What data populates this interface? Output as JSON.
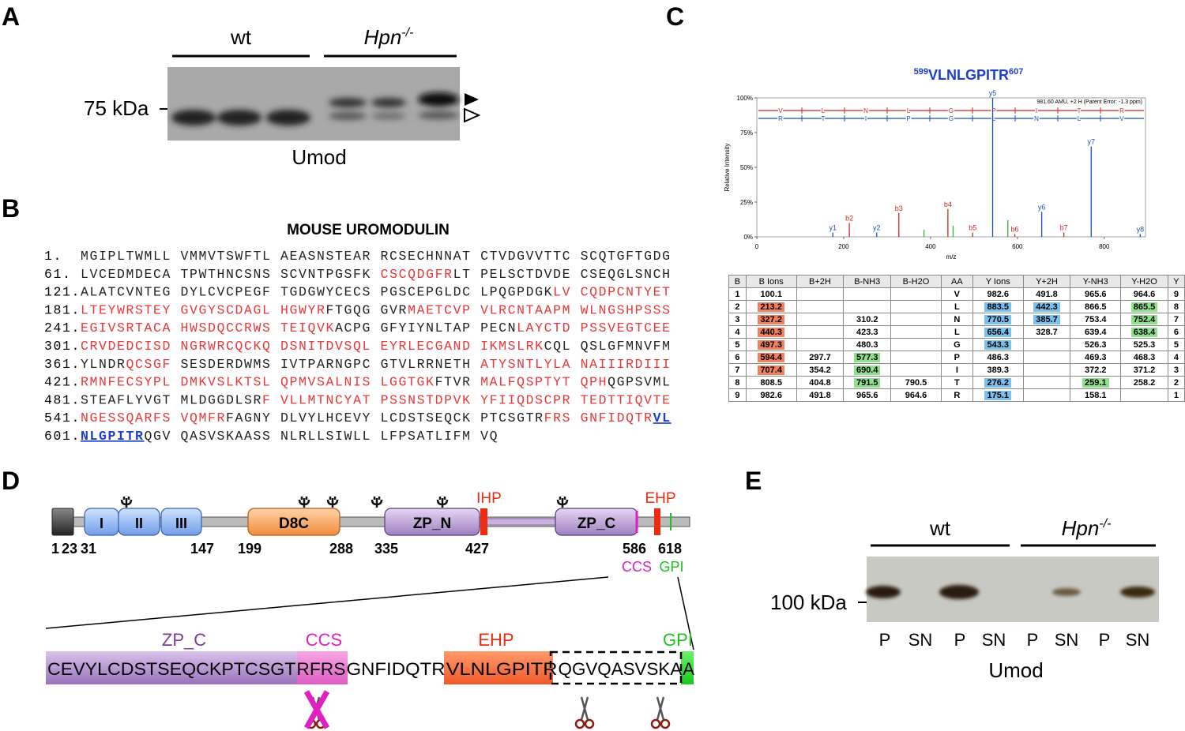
{
  "panel_a": {
    "label": "A",
    "group1": "wt",
    "group2": "Hpn",
    "group2_sup": "-/-",
    "marker": "75 kDa",
    "caption": "Umod"
  },
  "panel_b": {
    "label": "B",
    "title": "MOUSE UROMODULIN",
    "lines": [
      {
        "num": "1.",
        "segments": [
          {
            "text": "MGIPLTWMLL VMMVTSWFTL AEASNSTEAR RCSECHNNAT CTVDGVVTTC SCQTGFTGDG",
            "color": "#222222"
          }
        ]
      },
      {
        "num": "61.",
        "segments": [
          {
            "text": "LVCEDMDECA TPWTHNCSNS SCVNTPGSFK ",
            "color": "#222222"
          },
          {
            "text": "CSCQDGFR",
            "color": "#e8383a"
          },
          {
            "text": "LT PELSCTDVDE CSEQGLSNCH",
            "color": "#222222"
          }
        ]
      },
      {
        "num": "121.",
        "segments": [
          {
            "text": "ALATCVNTEG DYLCVCPEGF TGDGWYCECS PGSCEPGLDC LPQGPDGK",
            "color": "#222222"
          },
          {
            "text": "LV CQDPCNTYET",
            "color": "#e8383a"
          }
        ]
      },
      {
        "num": "181.",
        "segments": [
          {
            "text": "LTEYWRSTEY GVGYSCDAGL HGWYR",
            "color": "#e8383a"
          },
          {
            "text": "FTGQG GVR",
            "color": "#222222"
          },
          {
            "text": "MAETCVP VLRCNTAAPM WLNGSHPSSS",
            "color": "#e8383a"
          }
        ]
      },
      {
        "num": "241.",
        "segments": [
          {
            "text": "EGIVSRTACA HWSDQCCRWS TEIQVK",
            "color": "#e8383a"
          },
          {
            "text": "ACPG GFYIYNLTAP PECN",
            "color": "#222222"
          },
          {
            "text": "LAYCTD PSSVEGTCEE",
            "color": "#e8383a"
          }
        ]
      },
      {
        "num": "301.",
        "segments": [
          {
            "text": "CRVDEDCISD NGRWRCQCKQ DSNITDVSQL EYRLECGAND IKMSLRK",
            "color": "#e8383a"
          },
          {
            "text": "CQL QSLGFMNVFM",
            "color": "#222222"
          }
        ]
      },
      {
        "num": "361.",
        "segments": [
          {
            "text": "YLNDR",
            "color": "#222222"
          },
          {
            "text": "QCSGF",
            "color": "#e8383a"
          },
          {
            "text": " SESDERDWMS IVTPARNGPC GTVLRRNETH ",
            "color": "#222222"
          },
          {
            "text": "ATYSNTLYLA NAIIIRDIII",
            "color": "#e8383a"
          }
        ]
      },
      {
        "num": "421.",
        "segments": [
          {
            "text": "RMNFECSYPL DMKVSLKTSL QPMVSALNIS LGGTGK",
            "color": "#e8383a"
          },
          {
            "text": "FTVR ",
            "color": "#222222"
          },
          {
            "text": "MALFQSPTYT QPH",
            "color": "#e8383a"
          },
          {
            "text": "QGPSVML",
            "color": "#222222"
          }
        ]
      },
      {
        "num": "481.",
        "segments": [
          {
            "text": "STEAFLYVGT MLDGGDLSR",
            "color": "#222222"
          },
          {
            "text": "F VLLMTNCYAT PSSNSTDPVK YFIIQDSCPR TEDTTIQVTE",
            "color": "#e8383a"
          }
        ]
      },
      {
        "num": "541.",
        "segments": [
          {
            "text": "NGESSQARFS VQMFR",
            "color": "#e8383a"
          },
          {
            "text": "FAGNY DLVYLHCEVY LCDSTSEQCK PTCSGTR",
            "color": "#222222"
          },
          {
            "text": "FRS GNFIDQTR",
            "color": "#e8383a"
          },
          {
            "text": "VL",
            "color": "#1a3fd0",
            "emphasis": "underline"
          }
        ]
      },
      {
        "num": "601.",
        "segments": [
          {
            "text": "NLGPITR",
            "color": "#1a3fd0",
            "emphasis": "underline"
          },
          {
            "text": "QGV QASVSKAASS NLRLLSIWLL LFPSATLIFM VQ",
            "color": "#222222"
          }
        ]
      }
    ]
  },
  "panel_c": {
    "label": "C",
    "title_pre": "599",
    "title": "VLNLGPITR",
    "title_post": "607",
    "spectrum": {
      "type": "stem",
      "annotation": "981.60 AMU, +2 H (Parent Error: -1.3 ppm)",
      "x_label": "m/z",
      "y_label": "Relative Intensity",
      "xlim": [
        0,
        895
      ],
      "ylim": [
        0,
        100
      ],
      "xticks": [
        0,
        200,
        400,
        600,
        800
      ],
      "yticks": [
        {
          "value": 0,
          "label": "0%"
        },
        {
          "value": 25,
          "label": "25%"
        },
        {
          "value": 50,
          "label": "50%"
        },
        {
          "value": 75,
          "label": "75%"
        },
        {
          "value": 100,
          "label": "100%"
        }
      ],
      "ladder_b": [
        "V",
        "L",
        "N",
        "L",
        "G",
        "P",
        "I",
        "T",
        "R"
      ],
      "ladder_y": [
        "R",
        "T",
        "I",
        "P",
        "G",
        "L",
        "N",
        "L",
        "V"
      ],
      "series": [
        {
          "color": "#cc2a1e",
          "x": [
            213,
            327,
            440,
            497,
            594,
            707
          ],
          "values": [
            10,
            17,
            20,
            3,
            2,
            3
          ],
          "labels": [
            "b2",
            "b3",
            "b4",
            "b5",
            "b6",
            "b7"
          ]
        },
        {
          "color": "#1a4fc0",
          "x": [
            175,
            276,
            543,
            656,
            770,
            883
          ],
          "values": [
            3,
            3,
            100,
            18,
            65,
            2
          ],
          "labels": [
            "y1",
            "y2",
            "y5",
            "y6",
            "y7",
            "y8"
          ]
        },
        {
          "color": "#35b035",
          "x": [
            385,
            452,
            578
          ],
          "values": [
            5,
            8,
            12
          ]
        }
      ]
    },
    "table": {
      "header": [
        "B",
        "B Ions",
        "B+2H",
        "B-NH3",
        "B-H2O",
        "AA",
        "Y Ions",
        "Y+2H",
        "Y-NH3",
        "Y-H2O",
        "Y"
      ],
      "rows": [
        [
          "1",
          "100.1",
          null,
          null,
          null,
          "V",
          "982.6",
          "491.8",
          "965.6",
          "964.6",
          "9"
        ],
        [
          "2",
          {
            "text": "213.2",
            "color": "#f0805e"
          },
          null,
          null,
          null,
          "L",
          {
            "text": "883.5",
            "color": "#7cc0ee"
          },
          {
            "text": "442.3",
            "color": "#7cc0ee"
          },
          "866.5",
          {
            "text": "865.5",
            "color": "#8fe08a"
          },
          "8"
        ],
        [
          "3",
          {
            "text": "327.2",
            "color": "#f0805e"
          },
          null,
          "310.2",
          null,
          "N",
          {
            "text": "770.5",
            "color": "#7cc0ee"
          },
          {
            "text": "385.7",
            "color": "#7cc0ee"
          },
          "753.4",
          {
            "text": "752.4",
            "color": "#8fe08a"
          },
          "7"
        ],
        [
          "4",
          {
            "text": "440.3",
            "color": "#f0805e"
          },
          null,
          "423.3",
          null,
          "L",
          {
            "text": "656.4",
            "color": "#7cc0ee"
          },
          "328.7",
          "639.4",
          {
            "text": "638.4",
            "color": "#8fe08a"
          },
          "6"
        ],
        [
          "5",
          {
            "text": "497.3",
            "color": "#f0805e"
          },
          null,
          "480.3",
          null,
          "G",
          {
            "text": "543.3",
            "color": "#7cc0ee"
          },
          null,
          "526.3",
          "525.3",
          "5"
        ],
        [
          "6",
          {
            "text": "594.4",
            "color": "#f0805e"
          },
          "297.7",
          {
            "text": "577.3",
            "color": "#8fe08a"
          },
          null,
          "P",
          "486.3",
          null,
          "469.3",
          "468.3",
          "4"
        ],
        [
          "7",
          {
            "text": "707.4",
            "color": "#f0805e"
          },
          "354.2",
          {
            "text": "690.4",
            "color": "#8fe08a"
          },
          null,
          "I",
          "389.3",
          null,
          "372.2",
          "371.2",
          "3"
        ],
        [
          "8",
          "808.5",
          "404.8",
          {
            "text": "791.5",
            "color": "#8fe08a"
          },
          "790.5",
          "T",
          {
            "text": "276.2",
            "color": "#7cc0ee"
          },
          null,
          {
            "text": "259.1",
            "color": "#8fe08a"
          },
          "258.2",
          "2"
        ],
        [
          "9",
          "982.6",
          "491.8",
          "965.6",
          "964.6",
          "R",
          {
            "text": "175.1",
            "color": "#7cc0ee"
          },
          null,
          "158.1",
          null,
          "1"
        ]
      ]
    }
  },
  "panel_d": {
    "label": "D",
    "domains": [
      "I",
      "II",
      "III",
      "D8C",
      "ZP_N",
      "ZP_C"
    ],
    "ihp": "IHP",
    "ehp": "EHP",
    "positions": [
      "1",
      "23",
      "31",
      "147",
      "199",
      "288",
      "335",
      "427",
      "586",
      "618"
    ],
    "ccs": "CCS",
    "gpi": "GPI",
    "zoom_labels": [
      "ZP_C",
      "CCS",
      "EHP",
      "GPI"
    ],
    "zoom_sequence": [
      "CEVYLCDSTSEQCKPTCSGT",
      "RFRS",
      "GNFIDQTR",
      "VLNLGPITR",
      "QGVQASVSKA",
      "A"
    ]
  },
  "panel_e": {
    "label": "E",
    "group1": "wt",
    "group2": "Hpn",
    "group2_sup": "-/-",
    "marker": "100 kDa",
    "lanes": [
      "P",
      "SN",
      "P",
      "SN",
      "P",
      "SN",
      "P",
      "SN"
    ],
    "caption": "Umod"
  }
}
